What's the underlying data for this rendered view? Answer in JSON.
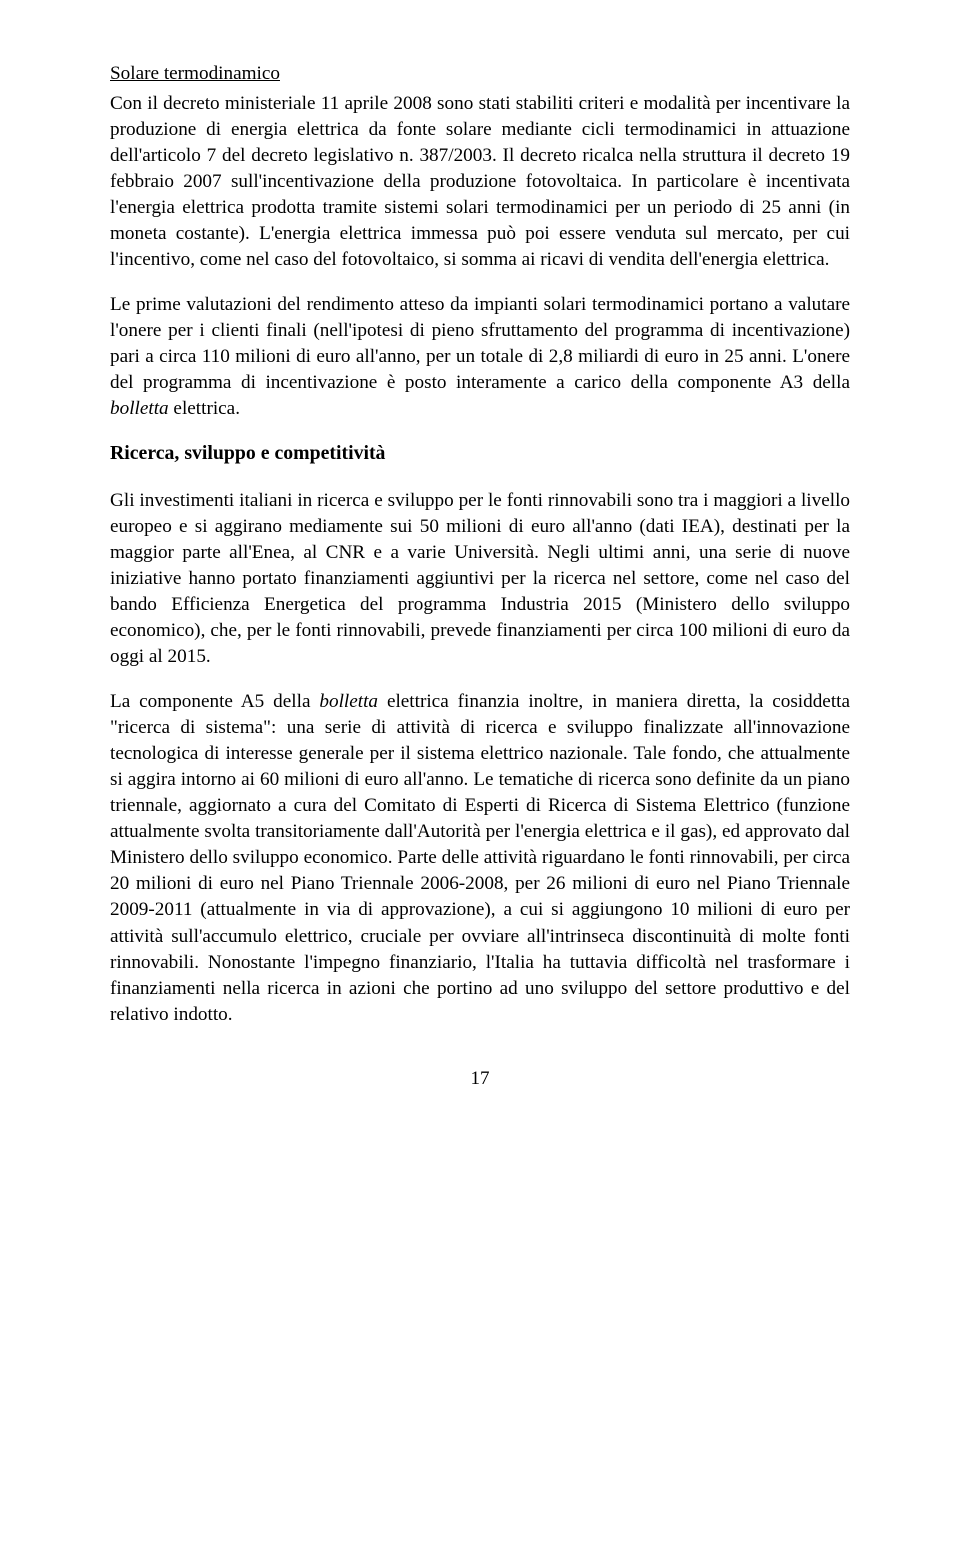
{
  "section1": {
    "title": "Solare termodinamico",
    "para": "Con il decreto ministeriale 11 aprile 2008 sono stati stabiliti criteri e modalità per incentivare la produzione di energia elettrica da fonte solare mediante cicli termodinamici in attuazione dell'articolo 7 del decreto legislativo n. 387/2003. Il decreto ricalca nella struttura il decreto 19 febbraio 2007 sull'incentivazione della produzione fotovoltaica. In particolare è incentivata l'energia elettrica prodotta tramite sistemi solari termodinamici per un periodo di 25 anni (in moneta costante). L'energia elettrica immessa può poi essere venduta sul mercato, per cui l'incentivo, come nel caso del fotovoltaico, si somma ai ricavi di vendita dell'energia elettrica.",
    "para2_a": "Le prime valutazioni del rendimento atteso da impianti solari termodinamici portano a valutare l'onere per i clienti finali (nell'ipotesi di pieno sfruttamento del programma di incentivazione) pari a circa 110 milioni di euro all'anno, per un totale di 2,8 miliardi di euro in 25 anni. L'onere del programma di incentivazione è posto interamente a carico della componente A3 della ",
    "para2_italic": "bolletta",
    "para2_b": " elettrica."
  },
  "section2": {
    "heading": "Ricerca, sviluppo e competitività",
    "para1": "Gli investimenti italiani in ricerca e sviluppo per le fonti rinnovabili sono tra i maggiori a livello europeo e si aggirano mediamente sui 50 milioni di euro all'anno (dati IEA), destinati per la maggior parte all'Enea, al CNR e a varie Università. Negli ultimi anni, una serie di nuove iniziative hanno portato finanziamenti aggiuntivi per la ricerca nel settore, come nel caso del bando Efficienza Energetica del programma Industria 2015 (Ministero dello sviluppo economico), che, per le fonti rinnovabili, prevede finanziamenti per circa 100 milioni di euro da oggi al 2015.",
    "para2_a": "La componente A5 della ",
    "para2_italic": "bolletta",
    "para2_b": " elettrica finanzia inoltre, in maniera diretta, la cosiddetta \"ricerca di sistema\": una serie di attività di ricerca e sviluppo finalizzate all'innovazione tecnologica di interesse generale per il sistema elettrico nazionale. Tale fondo, che attualmente si aggira intorno ai 60 milioni di euro all'anno. Le tematiche di ricerca sono definite da un piano triennale, aggiornato a cura del Comitato di Esperti di Ricerca di Sistema Elettrico (funzione attualmente svolta transitoriamente dall'Autorità per l'energia elettrica e il gas), ed approvato dal Ministero dello sviluppo economico. Parte delle attività riguardano le fonti rinnovabili, per circa 20 milioni di euro nel Piano Triennale 2006-2008, per 26 milioni di euro nel Piano Triennale 2009-2011 (attualmente in via di approvazione), a cui si aggiungono 10 milioni di euro per attività sull'accumulo elettrico, cruciale per ovviare all'intrinseca discontinuità di molte fonti rinnovabili. Nonostante l'impegno finanziario, l'Italia ha tuttavia difficoltà nel trasformare i finanziamenti nella ricerca in azioni che portino ad uno sviluppo del settore produttivo e del relativo indotto."
  },
  "pageNumber": "17"
}
